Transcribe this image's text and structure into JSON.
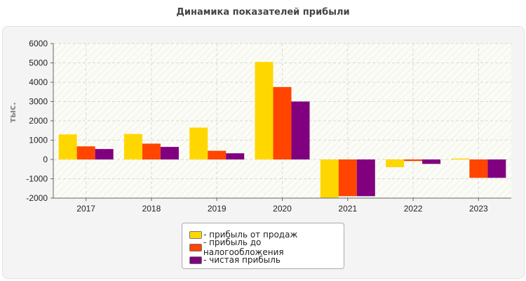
{
  "title": "Динамика показателей прибыли",
  "chart_data": {
    "type": "bar",
    "title": "Динамика показателей прибыли",
    "xlabel": "",
    "ylabel": "тыс.",
    "categories": [
      "2017",
      "2018",
      "2019",
      "2020",
      "2021",
      "2022",
      "2023"
    ],
    "series": [
      {
        "name": "- прибыль от продаж",
        "color": "#FFD700",
        "values": [
          1300,
          1320,
          1650,
          5050,
          -2000,
          -400,
          50
        ]
      },
      {
        "name": "- прибыль до налогообложения",
        "color": "#FF4500",
        "values": [
          680,
          820,
          450,
          3750,
          -1900,
          -80,
          -950
        ]
      },
      {
        "name": "- чистая прибыль",
        "color": "#800080",
        "values": [
          540,
          650,
          320,
          3000,
          -1900,
          -230,
          -950
        ]
      }
    ],
    "ylim": [
      -2000,
      6000
    ],
    "yticks": [
      "6000",
      "5000",
      "4000",
      "3000",
      "2000",
      "1000",
      "0",
      "-1000",
      "-2000"
    ],
    "grid": true,
    "legend_position": "bottom"
  }
}
